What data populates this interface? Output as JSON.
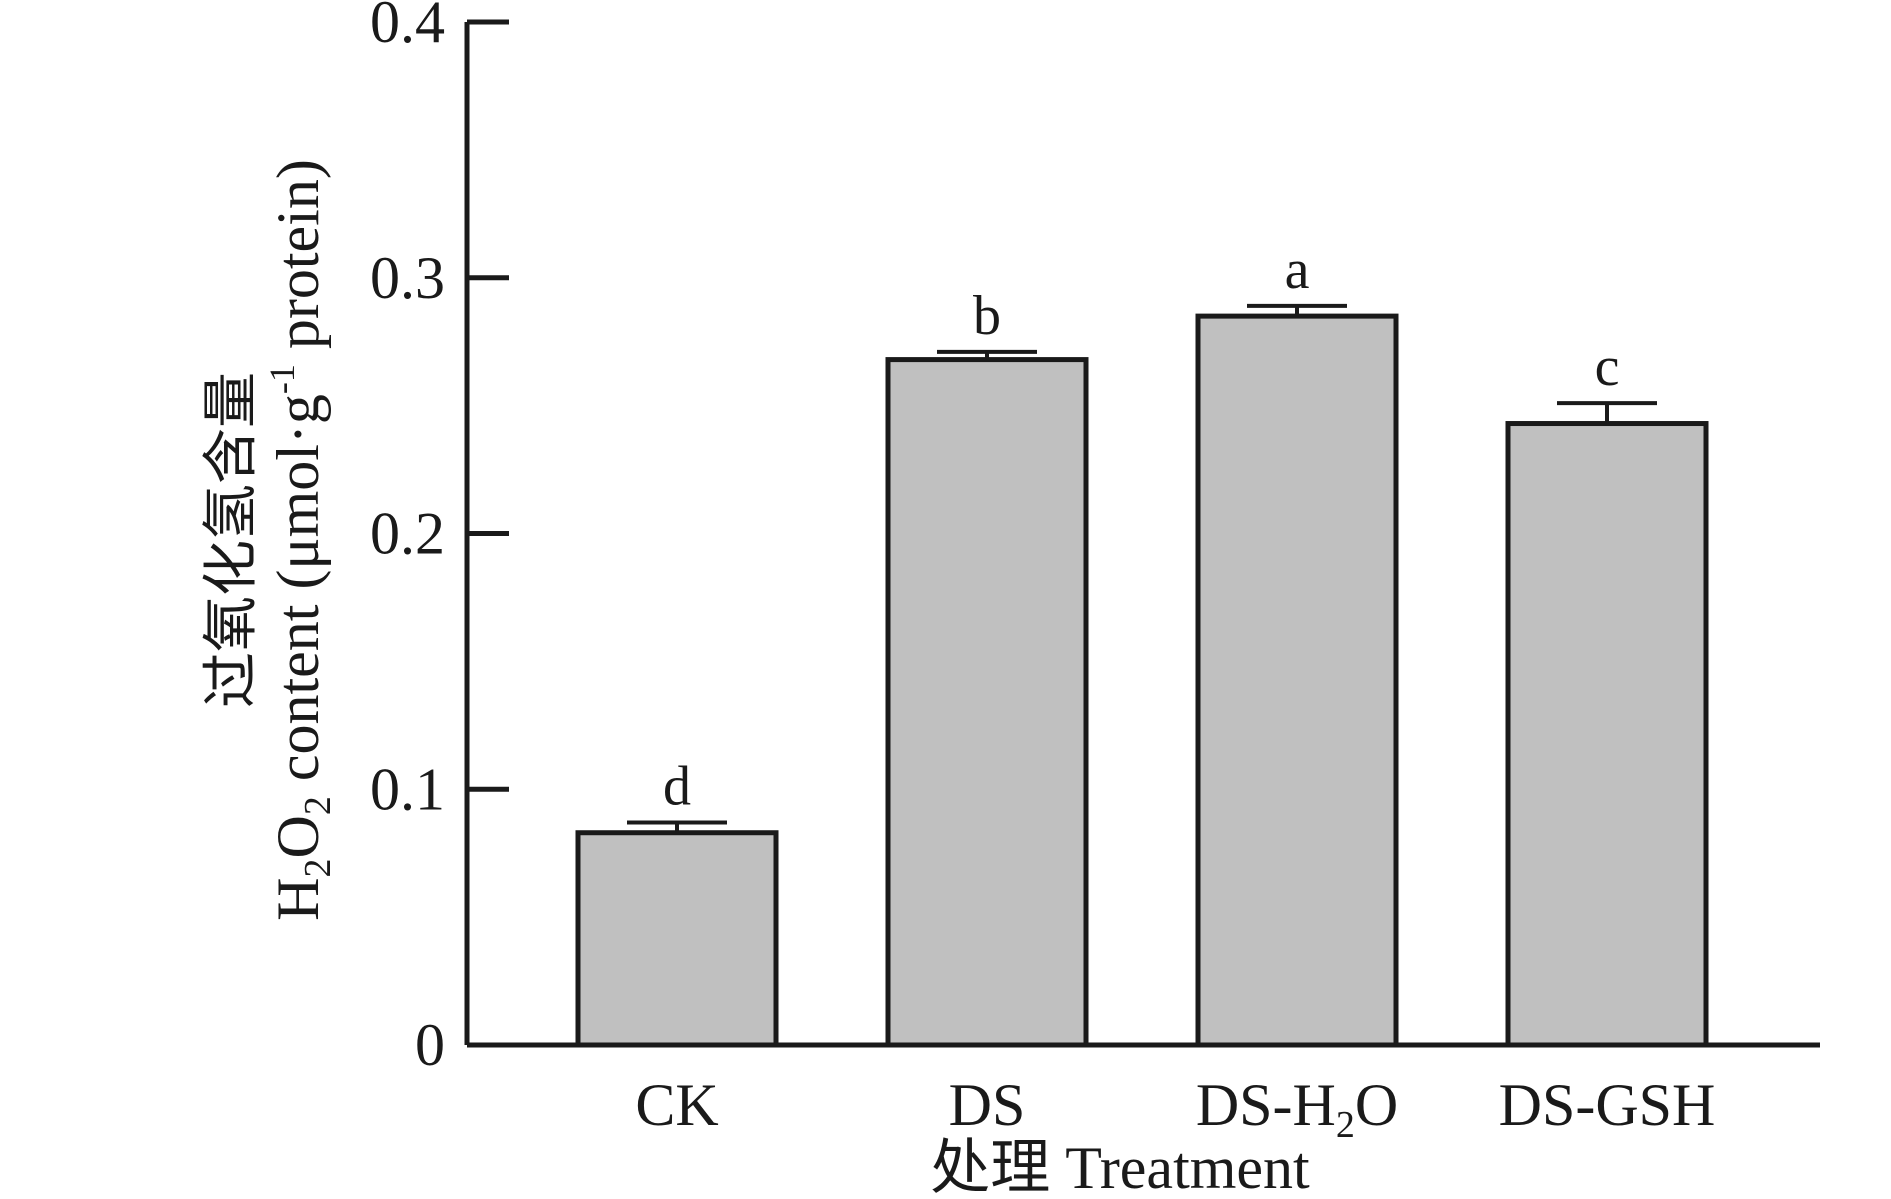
{
  "chart_data": {
    "type": "bar",
    "categories": [
      {
        "id": "CK",
        "text": "CK",
        "sub": null,
        "after": ""
      },
      {
        "id": "DS",
        "text": "DS",
        "sub": null,
        "after": ""
      },
      {
        "id": "DS-H2O",
        "text": "DS-H",
        "sub": "2",
        "after": "O"
      },
      {
        "id": "DS-GSH",
        "text": "DS-GSH",
        "sub": null,
        "after": ""
      }
    ],
    "values": [
      0.083,
      0.268,
      0.285,
      0.243
    ],
    "errors": [
      0.004,
      0.003,
      0.004,
      0.008
    ],
    "significance": [
      "d",
      "b",
      "a",
      "c"
    ],
    "ylim": [
      0,
      0.4
    ],
    "yticks": [
      {
        "value": 0,
        "label": "0"
      },
      {
        "value": 0.1,
        "label": "0.1"
      },
      {
        "value": 0.2,
        "label": "0.2"
      },
      {
        "value": 0.3,
        "label": "0.3"
      },
      {
        "value": 0.4,
        "label": "0.4"
      }
    ],
    "bar_color": "#c0c0c0",
    "edge_color": "#1a1a1a",
    "xlabel": "处理 Treatment",
    "ylabel_cn": "过氧化氢含量",
    "ylabel_en": {
      "part1": "H",
      "sub1": "2",
      "part2": "O",
      "sub2": "2",
      "part3": " content (μmol·g",
      "sup": "-1",
      "part4": " protein)"
    }
  }
}
